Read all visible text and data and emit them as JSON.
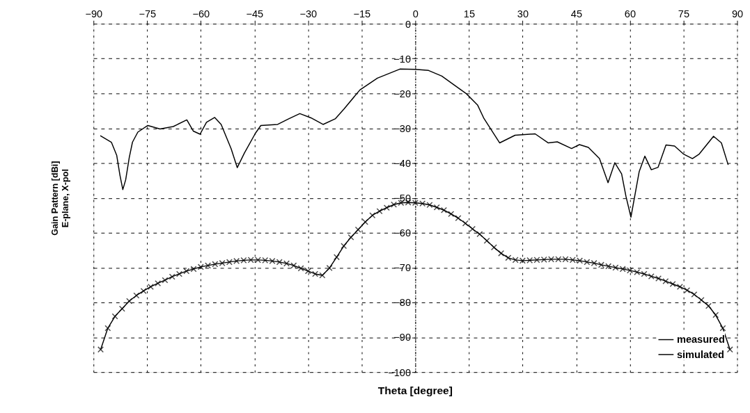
{
  "chart_data": {
    "type": "line",
    "xlabel": "Theta [degree]",
    "ylabel": "Gain Pattern [dBi]\nE-plane, X-pol",
    "xlim": [
      -90,
      90
    ],
    "xticks": [
      -90,
      -75,
      -60,
      -45,
      -30,
      -15,
      0,
      15,
      30,
      45,
      60,
      75,
      90
    ],
    "ylim": [
      -100,
      0
    ],
    "yticks": [
      -100,
      -90,
      -80,
      -70,
      -60,
      -50,
      -40,
      -30,
      -20,
      -10,
      0
    ],
    "grid": true,
    "legend": "bottom right",
    "line_style": "solid",
    "series": [
      {
        "name": "measured",
        "color": "#000000",
        "marker": "none",
        "x": [
          -88.1,
          -85,
          -83.5,
          -82.6,
          -81.8,
          -81,
          -80,
          -79.1,
          -77.6,
          -74.8,
          -71.4,
          -67.7,
          -63.9,
          -62.1,
          -60.2,
          -58.4,
          -56.1,
          -54.3,
          -51.5,
          -49.8,
          -47.8,
          -44.7,
          -43.2,
          -38.5,
          -35.4,
          -32.3,
          -29.2,
          -25.8,
          -22.4,
          -19.9,
          -15.5,
          -10.6,
          -4.3,
          0,
          3.7,
          7.4,
          10.5,
          14.3,
          17.4,
          19.2,
          23.6,
          27.9,
          33.5,
          37.2,
          39.7,
          43.7,
          45.9,
          48.4,
          51.5,
          53.9,
          55.8,
          57.7,
          58.9,
          60.3,
          62.6,
          64.2,
          66,
          67.9,
          70.1,
          72.5,
          75,
          77.5,
          79.4,
          83.4,
          85.6,
          87.5
        ],
        "values": [
          -32.1,
          -34,
          -37.8,
          -43.5,
          -47.6,
          -44.8,
          -38.4,
          -34,
          -31.1,
          -29.2,
          -30.2,
          -29.5,
          -27.6,
          -30.8,
          -31.7,
          -28.3,
          -26.9,
          -28.9,
          -35.9,
          -41.3,
          -37.1,
          -31.4,
          -29.2,
          -28.9,
          -27.3,
          -25.8,
          -27,
          -28.9,
          -27.3,
          -24.4,
          -19,
          -15.6,
          -13,
          -13.1,
          -13.4,
          -15,
          -17.3,
          -20.1,
          -23.3,
          -27.2,
          -34.2,
          -32,
          -31.6,
          -34.2,
          -33.9,
          -35.8,
          -34.7,
          -35.5,
          -38.7,
          -45.6,
          -39.9,
          -43.1,
          -49.5,
          -55.5,
          -42.5,
          -38,
          -41.9,
          -41.2,
          -34.8,
          -35.1,
          -37.4,
          -38.7,
          -37.4,
          -32.3,
          -34.2,
          -40.5
        ]
      },
      {
        "name": "simulated",
        "color": "#000000",
        "marker": "cross",
        "x": [
          -88,
          -86,
          -84,
          -82,
          -80,
          -78,
          -76,
          -74,
          -72,
          -70,
          -68,
          -66,
          -64,
          -62,
          -60,
          -58,
          -56,
          -54,
          -52,
          -50,
          -48,
          -46,
          -44,
          -42,
          -40,
          -38,
          -36,
          -34,
          -32,
          -30,
          -28,
          -26,
          -24,
          -22,
          -20,
          -18,
          -16,
          -14,
          -12,
          -10,
          -8,
          -6,
          -4,
          -2,
          0,
          2,
          4,
          6,
          8,
          10,
          12,
          14,
          16,
          18,
          20,
          22,
          24,
          26,
          28,
          30,
          32,
          34,
          36,
          38,
          40,
          42,
          44,
          46,
          48,
          50,
          52,
          54,
          56,
          58,
          60,
          62,
          64,
          66,
          68,
          70,
          72,
          74,
          76,
          78,
          80,
          82,
          84,
          86,
          88
        ],
        "values": [
          -93.5,
          -87.4,
          -84,
          -81.8,
          -79.6,
          -78,
          -76.7,
          -75.5,
          -74.5,
          -73.6,
          -72.6,
          -71.8,
          -71,
          -70.4,
          -69.8,
          -69.4,
          -69,
          -68.7,
          -68.4,
          -68.1,
          -67.9,
          -67.8,
          -67.8,
          -67.9,
          -68.1,
          -68.4,
          -68.8,
          -69.4,
          -70.2,
          -71,
          -71.8,
          -72.2,
          -70.1,
          -67,
          -63.8,
          -61.3,
          -59.1,
          -56.9,
          -55,
          -53.8,
          -52.8,
          -51.9,
          -51.4,
          -51.3,
          -51.4,
          -51.6,
          -52,
          -52.7,
          -53.5,
          -54.6,
          -55.8,
          -57.3,
          -58.9,
          -60.4,
          -62.3,
          -64.2,
          -65.9,
          -67.2,
          -67.8,
          -68,
          -67.9,
          -67.8,
          -67.7,
          -67.6,
          -67.6,
          -67.6,
          -67.8,
          -68,
          -68.4,
          -68.7,
          -69.2,
          -69.6,
          -70,
          -70.4,
          -70.8,
          -71.3,
          -71.8,
          -72.5,
          -73.1,
          -73.9,
          -74.7,
          -75.5,
          -76.5,
          -77.7,
          -79.3,
          -81,
          -83.6,
          -87.4,
          -93.5
        ]
      }
    ]
  }
}
